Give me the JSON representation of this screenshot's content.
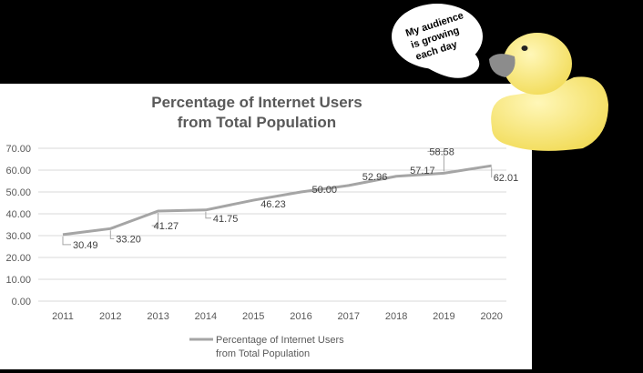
{
  "chart_data": {
    "type": "line",
    "title": [
      "Percentage of Internet Users",
      "from Total Population"
    ],
    "categories": [
      "2011",
      "2012",
      "2013",
      "2014",
      "2015",
      "2016",
      "2017",
      "2018",
      "2019",
      "2020"
    ],
    "series": [
      {
        "name": "Percentage of Internet Users from Total Population",
        "values": [
          30.49,
          33.2,
          41.27,
          41.75,
          46.23,
          50.0,
          52.96,
          57.17,
          58.58,
          62.01
        ]
      }
    ],
    "data_labels": [
      "30.49",
      "33.20",
      "41.27",
      "41.75",
      "46.23",
      "50.00",
      "52.96",
      "57.17",
      "58.58",
      "62.01"
    ],
    "y_ticks": [
      "0.00",
      "10.00",
      "20.00",
      "30.00",
      "40.00",
      "50.00",
      "60.00",
      "70.00"
    ],
    "ylim": [
      0,
      70
    ],
    "grid": true,
    "legend": {
      "position": "bottom",
      "lines": [
        "Percentage of Internet Users",
        "from Total Population"
      ]
    },
    "line_color": "#a5a5a5"
  },
  "speech_bubble": {
    "lines": [
      "My audience",
      "is growing",
      "each day"
    ]
  }
}
